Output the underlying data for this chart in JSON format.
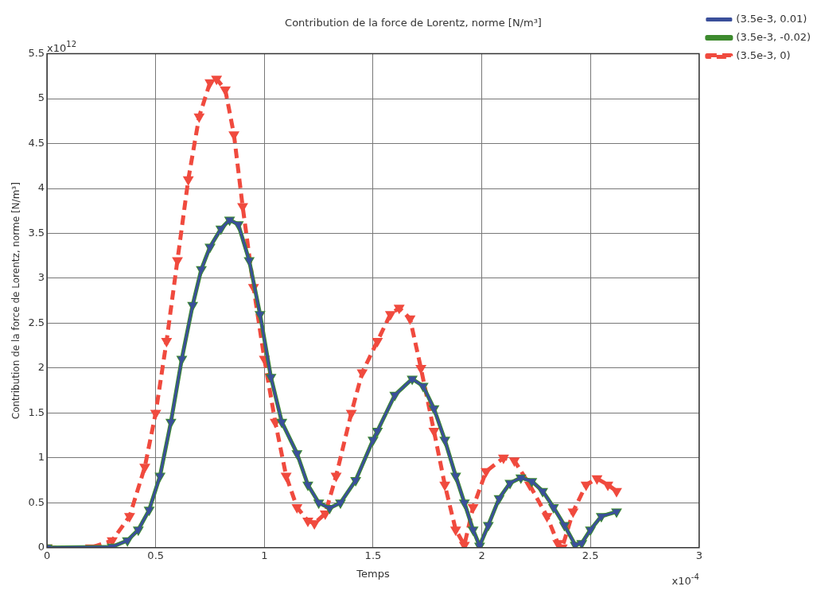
{
  "chart_data": {
    "type": "line",
    "title": "Contribution de la force de Lorentz, norme [N/m³]",
    "xlabel": "Temps",
    "ylabel": "Contribution de la force de Lorentz, norme [N/m³]",
    "annotations": [
      "x10$^{12}$",
      "x10$^{-4}$"
    ],
    "xlim": [
      0,
      3
    ],
    "xticks": [
      0,
      0.5,
      1,
      1.5,
      2,
      2.5,
      3
    ],
    "ylim": [
      0,
      5.5
    ],
    "yticks": [
      0,
      0.5,
      1,
      1.5,
      2,
      2.5,
      3,
      3.5,
      4,
      4.5,
      5,
      5.5
    ],
    "grid": true,
    "legend": "top right",
    "marker": "triangle",
    "series": [
      {
        "name": "(3.5e-3, 0.01)",
        "color": "#3a4f9a",
        "line_style": "solid",
        "x": [
          0,
          0.3,
          0.37,
          0.42,
          0.47,
          0.52,
          0.57,
          0.62,
          0.67,
          0.71,
          0.75,
          0.8,
          0.84,
          0.88,
          0.93,
          0.98,
          1.03,
          1.08,
          1.15,
          1.2,
          1.25,
          1.3,
          1.35,
          1.42,
          1.5,
          1.52,
          1.6,
          1.68,
          1.73,
          1.78,
          1.83,
          1.88,
          1.92,
          1.96,
          1.99,
          2.03,
          2.08,
          2.13,
          2.18,
          2.23,
          2.28,
          2.33,
          2.38,
          2.43,
          2.46,
          2.5,
          2.55,
          2.62
        ],
        "values": [
          0,
          0.01,
          0.08,
          0.2,
          0.42,
          0.8,
          1.4,
          2.1,
          2.7,
          3.1,
          3.35,
          3.55,
          3.65,
          3.6,
          3.2,
          2.6,
          1.9,
          1.4,
          1.05,
          0.7,
          0.5,
          0.44,
          0.5,
          0.75,
          1.2,
          1.3,
          1.7,
          1.88,
          1.8,
          1.55,
          1.2,
          0.8,
          0.5,
          0.2,
          0.02,
          0.25,
          0.55,
          0.72,
          0.78,
          0.74,
          0.63,
          0.45,
          0.25,
          0.03,
          0.05,
          0.2,
          0.35,
          0.4
        ]
      },
      {
        "name": "(3.5e-3, -0.02)",
        "color": "#3d8a2e",
        "line_style": "solid",
        "x": [
          0,
          0.3,
          0.37,
          0.42,
          0.47,
          0.52,
          0.57,
          0.62,
          0.67,
          0.71,
          0.75,
          0.8,
          0.84,
          0.88,
          0.93,
          0.98,
          1.03,
          1.08,
          1.15,
          1.2,
          1.25,
          1.3,
          1.35,
          1.42,
          1.5,
          1.52,
          1.6,
          1.68,
          1.73,
          1.78,
          1.83,
          1.88,
          1.92,
          1.96,
          1.99,
          2.03,
          2.08,
          2.13,
          2.18,
          2.23,
          2.28,
          2.33,
          2.38,
          2.43,
          2.46,
          2.5,
          2.55,
          2.62
        ],
        "values": [
          0,
          0.01,
          0.08,
          0.2,
          0.42,
          0.8,
          1.4,
          2.1,
          2.7,
          3.1,
          3.35,
          3.55,
          3.65,
          3.6,
          3.2,
          2.6,
          1.9,
          1.4,
          1.05,
          0.7,
          0.5,
          0.44,
          0.5,
          0.75,
          1.2,
          1.3,
          1.7,
          1.88,
          1.8,
          1.55,
          1.2,
          0.8,
          0.5,
          0.2,
          0.02,
          0.25,
          0.55,
          0.72,
          0.78,
          0.74,
          0.63,
          0.45,
          0.25,
          0.03,
          0.05,
          0.2,
          0.35,
          0.4
        ]
      },
      {
        "name": "(3.5e-3, 0)",
        "color": "#f04a3e",
        "line_style": "dashed",
        "x": [
          0,
          0.2,
          0.3,
          0.38,
          0.45,
          0.5,
          0.55,
          0.6,
          0.65,
          0.7,
          0.75,
          0.78,
          0.82,
          0.86,
          0.9,
          0.95,
          1,
          1.05,
          1.1,
          1.15,
          1.2,
          1.23,
          1.28,
          1.33,
          1.4,
          1.45,
          1.52,
          1.58,
          1.62,
          1.67,
          1.72,
          1.78,
          1.83,
          1.88,
          1.92,
          1.96,
          2.02,
          2.1,
          2.15,
          2.22,
          2.3,
          2.35,
          2.37,
          2.42,
          2.48,
          2.53,
          2.58,
          2.62
        ],
        "values": [
          0,
          0,
          0.08,
          0.35,
          0.9,
          1.5,
          2.3,
          3.2,
          4.1,
          4.8,
          5.18,
          5.22,
          5.1,
          4.6,
          3.8,
          2.9,
          2.1,
          1.4,
          0.8,
          0.45,
          0.3,
          0.27,
          0.38,
          0.8,
          1.5,
          1.95,
          2.3,
          2.6,
          2.67,
          2.55,
          2,
          1.3,
          0.7,
          0.2,
          0.03,
          0.45,
          0.85,
          1,
          0.97,
          0.7,
          0.35,
          0.05,
          0,
          0.4,
          0.7,
          0.77,
          0.7,
          0.63
        ]
      }
    ]
  }
}
